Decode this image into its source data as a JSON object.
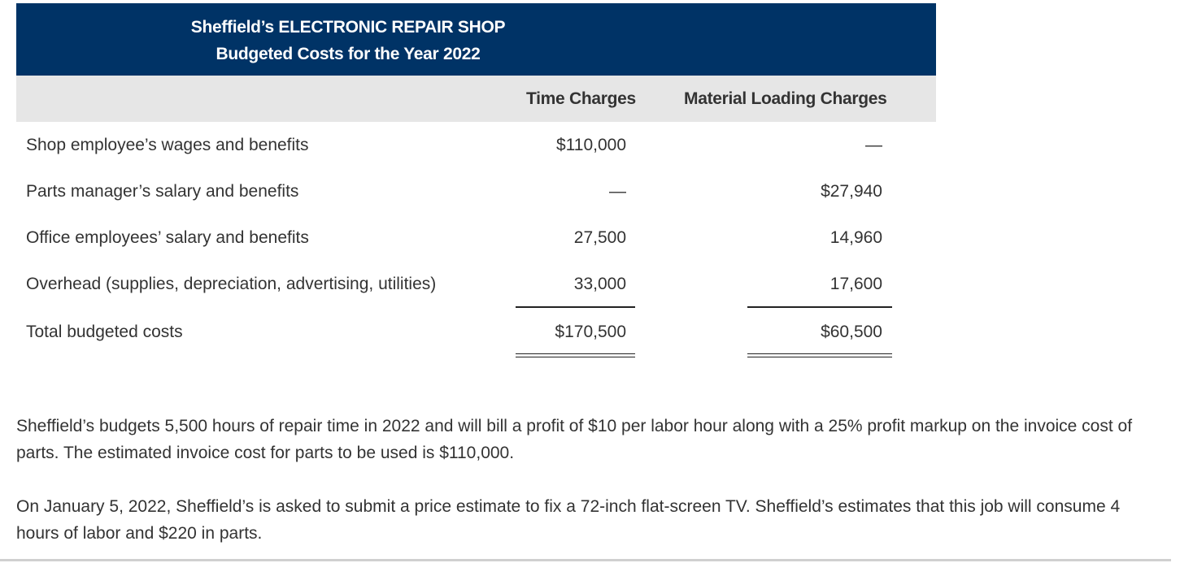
{
  "header": {
    "title": "Sheffield’s ELECTRONIC REPAIR SHOP",
    "subtitle": "Budgeted Costs for the Year 2022"
  },
  "columns": {
    "time": "Time Charges",
    "material": "Material Loading Charges"
  },
  "rows": [
    {
      "label": "Shop employee’s wages and benefits",
      "time": "$110,000",
      "material": "—"
    },
    {
      "label": "Parts manager’s salary and benefits",
      "time": "—",
      "material": "$27,940"
    },
    {
      "label": "Office employees’ salary and benefits",
      "time": "27,500",
      "material": "14,960"
    },
    {
      "label": "Overhead (supplies, depreciation, advertising, utilities)",
      "time": "33,000",
      "material": "17,600"
    },
    {
      "label": "Total budgeted costs",
      "time": "$170,500",
      "material": "$60,500"
    }
  ],
  "paragraphs": [
    "Sheffield’s budgets 5,500 hours of repair time in 2022 and will bill a profit of $10 per labor hour along with a 25% profit markup on the invoice cost of parts. The estimated invoice cost for parts to be used is $110,000.",
    "On January 5, 2022, Sheffield’s is asked to submit a price estimate to fix a 72-inch flat-screen TV. Sheffield’s estimates that this job will consume 4 hours of labor and $220 in parts."
  ]
}
